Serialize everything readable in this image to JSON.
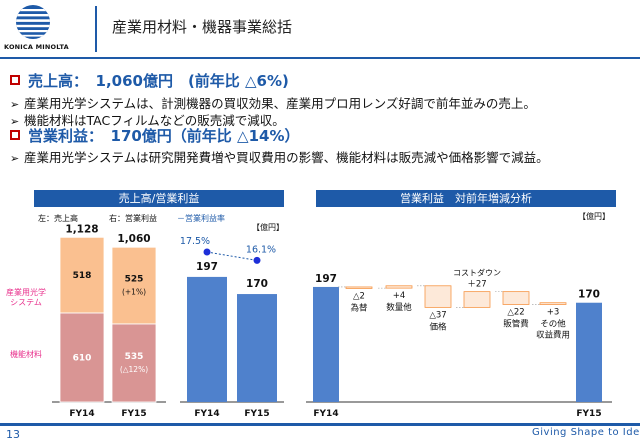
{
  "header": {
    "logo_text": "KONICA MINOLTA",
    "title": "産業用材料・機器事業総括"
  },
  "summary": {
    "sales_heading": "売上高：　1,060億円　(前年比 △6%)",
    "sales_points": [
      "産業用光学システムは、計測機器の買収効果、産業用プロ用レンズ好調で前年並みの売上。",
      "機能材料はTACフィルムなどの販売減で減収。"
    ],
    "profit_heading": "営業利益：　170億円（前年比 △14%）",
    "profit_points": [
      "産業用光学システムは研究開発費増や買収費用の影響、機能材料は販売減や価格影響で減益。"
    ],
    "arrow_glyph": "➢"
  },
  "left_chart": {
    "title": "売上高/営業利益",
    "legend_left": "左：売上高",
    "legend_right": "右：営業利益",
    "legend_rate": "－営業利益率",
    "unit": "【億円】",
    "segment_labels": {
      "optical": "産業用光学\nシステム",
      "materials": "機能材料"
    },
    "segment_label_color": "#e8308c"
  },
  "right_chart": {
    "title": "営業利益　対前年増減分析",
    "unit": "【億円】"
  },
  "chart_data": [
    {
      "type": "bar",
      "stacked": true,
      "categories": [
        "FY14",
        "FY15"
      ],
      "series": [
        {
          "name": "機能材料",
          "values": [
            610,
            535
          ],
          "value_labels": [
            "610",
            "535"
          ],
          "notes": [
            "",
            "(△12%)"
          ],
          "color": "#d99594"
        },
        {
          "name": "産業用光学システム",
          "values": [
            518,
            525
          ],
          "value_labels": [
            "518",
            "525"
          ],
          "notes": [
            "",
            "(+1%)"
          ],
          "color": "#fac090"
        }
      ],
      "totals": [
        "1,128",
        "1,060"
      ]
    },
    {
      "type": "bar",
      "categories": [
        "FY14",
        "FY15"
      ],
      "values": [
        197,
        170
      ],
      "value_labels": [
        "197",
        "170"
      ],
      "rate_labels": [
        "17.5%",
        "16.1%"
      ],
      "rate_values": [
        17.5,
        16.1
      ],
      "color": "#4f81cc"
    },
    {
      "type": "waterfall",
      "steps": [
        {
          "label": "FY14",
          "value": 197,
          "value_label": "197",
          "kind": "total"
        },
        {
          "label": "為替",
          "value": -2,
          "value_label": "△2",
          "kind": "delta"
        },
        {
          "label": "数量他",
          "value": 4,
          "value_label": "+4",
          "kind": "delta"
        },
        {
          "label": "価格",
          "value": -37,
          "value_label": "△37",
          "kind": "delta"
        },
        {
          "label": "コストダウン",
          "value": 27,
          "value_label": "＋27",
          "kind": "delta"
        },
        {
          "label": "販管費",
          "value": -22,
          "value_label": "△22",
          "kind": "delta"
        },
        {
          "label": "その他\n収益費用",
          "value": 3,
          "value_label": "+3",
          "kind": "delta"
        },
        {
          "label": "FY15",
          "value": 170,
          "value_label": "170",
          "kind": "total"
        }
      ],
      "colors": {
        "total": "#4f81cc",
        "delta": "#fde9d9",
        "delta_border": "#f79646"
      }
    }
  ],
  "footer": {
    "page_number": "13",
    "tagline": "Giving Shape to Ideas"
  }
}
